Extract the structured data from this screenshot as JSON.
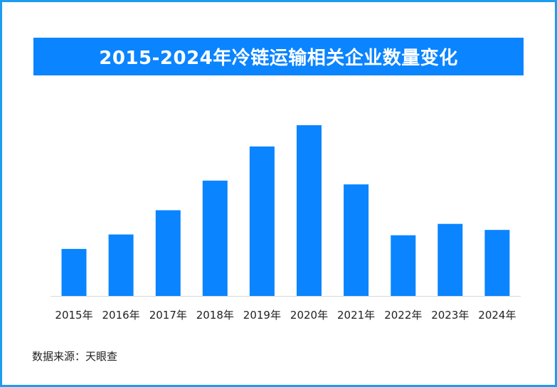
{
  "colors": {
    "border": "#1e9cf0",
    "title_bg": "#0a84ff",
    "title_text": "#ffffff",
    "bar": "#0a84ff",
    "baseline": "#d9d9d9",
    "label_text": "#222222"
  },
  "chart_data": {
    "type": "bar",
    "title": "2015-2024年冷链运输相关企业数量变化",
    "xlabel": "",
    "ylabel": "",
    "categories": [
      "2015年",
      "2016年",
      "2017年",
      "2018年",
      "2019年",
      "2020年",
      "2021年",
      "2022年",
      "2023年",
      "2024年"
    ],
    "values": [
      62,
      81,
      113,
      152,
      197,
      225,
      147,
      80,
      95,
      87
    ],
    "ylim": [
      0,
      240
    ],
    "grid": false,
    "legend": "none"
  },
  "footer": {
    "source": "数据来源：天眼查"
  }
}
